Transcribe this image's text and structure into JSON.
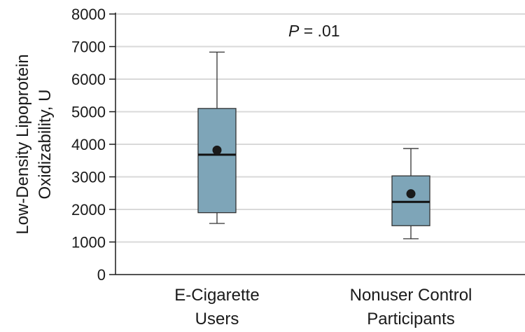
{
  "chart_data": {
    "type": "box",
    "ylabel_line1": "Low-Density Lipoprotein",
    "ylabel_line2": "Oxidizability, U",
    "xlabel": "",
    "ylim": [
      0,
      8000
    ],
    "yticks": [
      0,
      1000,
      2000,
      3000,
      4000,
      5000,
      6000,
      7000,
      8000
    ],
    "grid": true,
    "annotation": {
      "italic": "P",
      "rest": " = .01"
    },
    "categories": [
      {
        "label_lines": [
          "E-Cigarette",
          "Users"
        ]
      },
      {
        "label_lines": [
          "Nonuser Control",
          "Participants"
        ]
      }
    ],
    "boxes": [
      {
        "whisker_low": 1570,
        "q1": 1900,
        "median": 3680,
        "q3": 5100,
        "whisker_high": 6830,
        "mean": 3820
      },
      {
        "whisker_low": 1100,
        "q1": 1500,
        "median": 2230,
        "q3": 3030,
        "whisker_high": 3870,
        "mean": 2480
      }
    ],
    "colors": {
      "box_fill": "#7ea5b8",
      "grid": "#d9d9d9",
      "mean_marker": "#1a1a1a"
    }
  }
}
